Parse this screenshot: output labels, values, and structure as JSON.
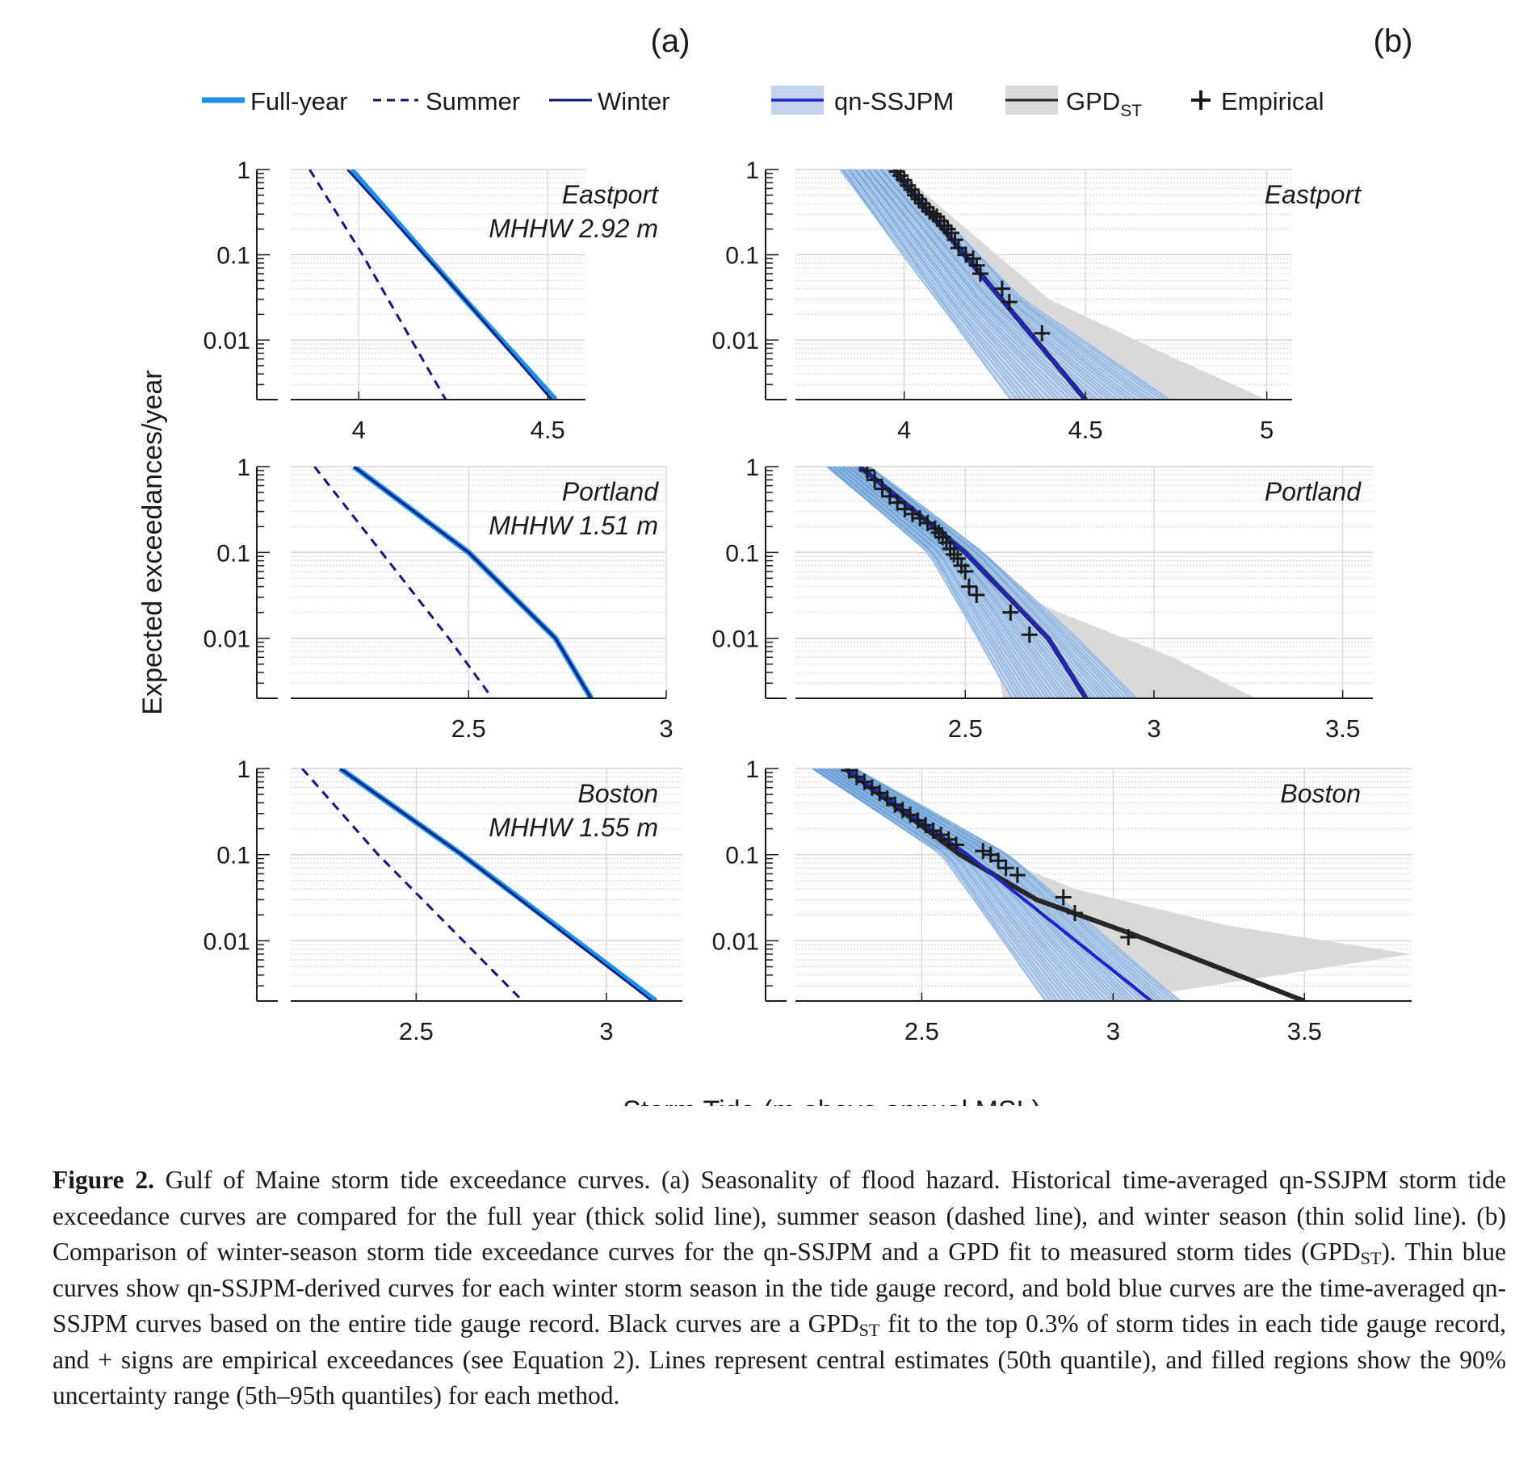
{
  "panel_labels": [
    "(a)",
    "(b)"
  ],
  "legend_a": {
    "full_year": "Full-year",
    "summer": "Summer",
    "winter": "Winter"
  },
  "legend_b": {
    "qn": "qn-SSJPM",
    "gpd_main": "GPD",
    "gpd_sub": "ST",
    "empirical": "Empirical"
  },
  "y_axis_label": "Expected exceedances/year",
  "x_axis_label": "Storm Tide (m above annual MSL)",
  "y_tick_labels": [
    "1",
    "0.1",
    "0.01"
  ],
  "colors": {
    "full_year": "#1d8fe6",
    "summer": "#10157a",
    "winter": "#10157a",
    "qn_band": "#c3d3ee",
    "qn_line": "#1f24c8",
    "ensemble": "#2a7dc4",
    "gpd_band": "#d9d9d9",
    "gpd_line": "#262626",
    "empirical": "#1a1a1a",
    "grid": "#d4d4d4"
  },
  "caption": {
    "label": "Figure 2.",
    "p1": " Gulf of Maine storm tide exceedance curves. (a) Seasonality of flood hazard. Historical time-averaged qn-SSJPM storm tide exceedance curves are compared for the full year (thick solid line), summer season (dashed line), and winter season (thin solid line). (b) Comparison of winter-season storm tide exceedance curves for the qn-SSJPM and a GPD fit to measured storm tides (GPD",
    "sub1": "ST",
    "p2": "). Thin blue curves show qn-SSJPM-derived curves for each winter storm season in the tide gauge record, and bold blue curves are the time-averaged qn-SSJPM curves based on the entire tide gauge record. Black curves are a GPD",
    "sub2": "ST",
    "p3": " fit to the top 0.3% of storm tides in each tide gauge record, and + signs are empirical exceedances (see Equation 2). Lines represent central estimates (50th quantile), and filled regions show the 90% uncertainty range (5th–95th quantiles) for each method."
  },
  "chart_data": [
    {
      "panel": "a",
      "station": "Eastport",
      "annotation": "MHHW 2.92 m",
      "type": "line",
      "y_scale": "log",
      "xlim": [
        3.82,
        4.6
      ],
      "ylim": [
        0.002,
        1
      ],
      "x_ticks": [
        4,
        4.5
      ],
      "y_ticks": [
        1,
        0.1,
        0.01
      ],
      "series": [
        {
          "name": "Full-year",
          "x": [
            3.98,
            4.28,
            4.52
          ],
          "y": [
            1,
            0.03,
            0.002
          ]
        },
        {
          "name": "Summer",
          "x": [
            3.87,
            4.01,
            4.23
          ],
          "y": [
            1,
            0.1,
            0.002
          ]
        },
        {
          "name": "Winter",
          "x": [
            3.97,
            4.28,
            4.51
          ],
          "y": [
            1,
            0.03,
            0.002
          ]
        }
      ]
    },
    {
      "panel": "a",
      "station": "Portland",
      "annotation": "MHHW 1.51 m",
      "type": "line",
      "y_scale": "log",
      "xlim": [
        2.05,
        3.0
      ],
      "ylim": [
        0.002,
        1
      ],
      "x_ticks": [
        2.5,
        3
      ],
      "y_ticks": [
        1,
        0.1,
        0.01
      ],
      "series": [
        {
          "name": "Full-year",
          "x": [
            2.21,
            2.5,
            2.72,
            2.81
          ],
          "y": [
            1,
            0.1,
            0.01,
            0.002
          ]
        },
        {
          "name": "Summer",
          "x": [
            2.11,
            2.28,
            2.45,
            2.56
          ],
          "y": [
            1,
            0.1,
            0.01,
            0.002
          ]
        },
        {
          "name": "Winter",
          "x": [
            2.21,
            2.5,
            2.72,
            2.81
          ],
          "y": [
            1,
            0.1,
            0.01,
            0.002
          ]
        }
      ]
    },
    {
      "panel": "a",
      "station": "Boston",
      "annotation": "MHHW 1.55 m",
      "type": "line",
      "y_scale": "log",
      "xlim": [
        2.17,
        3.2
      ],
      "ylim": [
        0.002,
        1
      ],
      "x_ticks": [
        2.5,
        3
      ],
      "y_ticks": [
        1,
        0.1,
        0.01
      ],
      "series": [
        {
          "name": "Full-year",
          "x": [
            2.3,
            2.62,
            3.13
          ],
          "y": [
            1,
            0.1,
            0.002
          ]
        },
        {
          "name": "Summer",
          "x": [
            2.2,
            2.4,
            2.78
          ],
          "y": [
            1,
            0.1,
            0.002
          ]
        },
        {
          "name": "Winter",
          "x": [
            2.3,
            2.62,
            3.12
          ],
          "y": [
            1,
            0.1,
            0.002
          ]
        }
      ]
    },
    {
      "panel": "b",
      "station": "Eastport",
      "type": "line",
      "y_scale": "log",
      "xlim": [
        3.7,
        5.07
      ],
      "ylim": [
        0.002,
        1
      ],
      "x_ticks": [
        4,
        4.5,
        5
      ],
      "y_ticks": [
        1,
        0.1,
        0.01
      ],
      "qn_band_lower": {
        "x": [
          3.82,
          4.29
        ],
        "y": [
          1,
          0.002
        ]
      },
      "qn_band_upper": {
        "x": [
          3.98,
          4.33,
          4.74
        ],
        "y": [
          1,
          0.03,
          0.002
        ]
      },
      "qn_median": {
        "x": [
          3.97,
          4.5
        ],
        "y": [
          1,
          0.002
        ]
      },
      "gpd_band_lower": {
        "x": [
          3.97,
          4.1,
          4.28,
          4.45
        ],
        "y": [
          1,
          0.1,
          0.01,
          0.002
        ]
      },
      "gpd_band_upper": {
        "x": [
          3.98,
          4.4,
          4.55,
          4.75,
          5.0
        ],
        "y": [
          1,
          0.03,
          0.015,
          0.006,
          0.002
        ]
      },
      "gpd_median": {
        "x": [
          3.97,
          4.5
        ],
        "y": [
          1,
          0.002
        ]
      },
      "empirical": {
        "x": [
          3.98,
          3.99,
          4.0,
          4.01,
          4.02,
          4.03,
          4.04,
          4.05,
          4.06,
          4.07,
          4.08,
          4.09,
          4.1,
          4.11,
          4.12,
          4.13,
          4.14,
          4.15,
          4.17,
          4.19,
          4.2,
          4.21,
          4.27,
          4.29,
          4.38
        ],
        "y": [
          0.95,
          0.85,
          0.75,
          0.65,
          0.58,
          0.5,
          0.45,
          0.4,
          0.36,
          0.32,
          0.3,
          0.28,
          0.25,
          0.22,
          0.2,
          0.18,
          0.15,
          0.12,
          0.1,
          0.09,
          0.075,
          0.06,
          0.04,
          0.028,
          0.012
        ]
      }
    },
    {
      "panel": "b",
      "station": "Portland",
      "type": "line",
      "y_scale": "log",
      "xlim": [
        2.05,
        3.58
      ],
      "ylim": [
        0.002,
        1
      ],
      "x_ticks": [
        2.5,
        3,
        3.5
      ],
      "y_ticks": [
        1,
        0.1,
        0.01
      ],
      "qn_band_lower": {
        "x": [
          2.13,
          2.4,
          2.53,
          2.62
        ],
        "y": [
          1,
          0.1,
          0.01,
          0.002
        ]
      },
      "qn_band_upper": {
        "x": [
          2.25,
          2.55,
          2.8,
          2.96
        ],
        "y": [
          1,
          0.1,
          0.01,
          0.002
        ]
      },
      "qn_median": {
        "x": [
          2.22,
          2.5,
          2.72,
          2.82
        ],
        "y": [
          1,
          0.1,
          0.01,
          0.002
        ]
      },
      "gpd_band_lower": {
        "x": [
          2.22,
          2.48,
          2.57,
          2.6
        ],
        "y": [
          1,
          0.1,
          0.01,
          0.002
        ]
      },
      "gpd_band_upper": {
        "x": [
          2.23,
          2.55,
          2.75,
          3.05,
          3.27
        ],
        "y": [
          1,
          0.05,
          0.02,
          0.006,
          0.002
        ]
      },
      "gpd_median": {
        "x": [
          2.22,
          2.5,
          2.72,
          2.82
        ],
        "y": [
          1,
          0.1,
          0.01,
          0.002
        ]
      },
      "empirical": {
        "x": [
          2.24,
          2.26,
          2.28,
          2.3,
          2.32,
          2.34,
          2.36,
          2.38,
          2.4,
          2.42,
          2.43,
          2.44,
          2.45,
          2.46,
          2.47,
          2.48,
          2.49,
          2.5,
          2.51,
          2.53,
          2.62,
          2.67
        ],
        "y": [
          0.9,
          0.7,
          0.55,
          0.45,
          0.38,
          0.32,
          0.28,
          0.25,
          0.22,
          0.19,
          0.17,
          0.15,
          0.13,
          0.11,
          0.095,
          0.085,
          0.07,
          0.06,
          0.04,
          0.032,
          0.02,
          0.011
        ]
      }
    },
    {
      "panel": "b",
      "station": "Boston",
      "type": "line",
      "y_scale": "log",
      "xlim": [
        2.17,
        3.78
      ],
      "ylim": [
        0.002,
        1
      ],
      "x_ticks": [
        2.5,
        3,
        3.5
      ],
      "y_ticks": [
        1,
        0.1,
        0.01
      ],
      "qn_band_lower": {
        "x": [
          2.21,
          2.55,
          2.82
        ],
        "y": [
          1,
          0.1,
          0.002
        ]
      },
      "qn_band_upper": {
        "x": [
          2.33,
          2.73,
          3.18
        ],
        "y": [
          1,
          0.1,
          0.002
        ]
      },
      "qn_median": {
        "x": [
          2.3,
          2.62,
          3.1
        ],
        "y": [
          1,
          0.1,
          0.002
        ]
      },
      "gpd_band_lower": {
        "x": [
          2.3,
          2.6,
          2.8,
          3.0
        ],
        "y": [
          1,
          0.1,
          0.02,
          0.002
        ]
      },
      "gpd_band_upper": {
        "x": [
          2.3,
          2.68,
          2.9,
          3.3,
          3.78
        ],
        "y": [
          1,
          0.1,
          0.04,
          0.015,
          0.007
        ]
      },
      "gpd_median": {
        "x": [
          2.3,
          2.6,
          2.8,
          3.05,
          3.5
        ],
        "y": [
          1,
          0.1,
          0.03,
          0.012,
          0.002
        ]
      },
      "empirical": {
        "x": [
          2.31,
          2.33,
          2.35,
          2.37,
          2.39,
          2.41,
          2.43,
          2.45,
          2.47,
          2.49,
          2.51,
          2.53,
          2.55,
          2.57,
          2.59,
          2.66,
          2.68,
          2.7,
          2.72,
          2.75,
          2.87,
          2.9,
          3.04
        ],
        "y": [
          0.95,
          0.8,
          0.7,
          0.6,
          0.52,
          0.45,
          0.38,
          0.33,
          0.29,
          0.25,
          0.22,
          0.19,
          0.17,
          0.15,
          0.13,
          0.11,
          0.1,
          0.085,
          0.07,
          0.058,
          0.032,
          0.021,
          0.011
        ]
      }
    }
  ]
}
